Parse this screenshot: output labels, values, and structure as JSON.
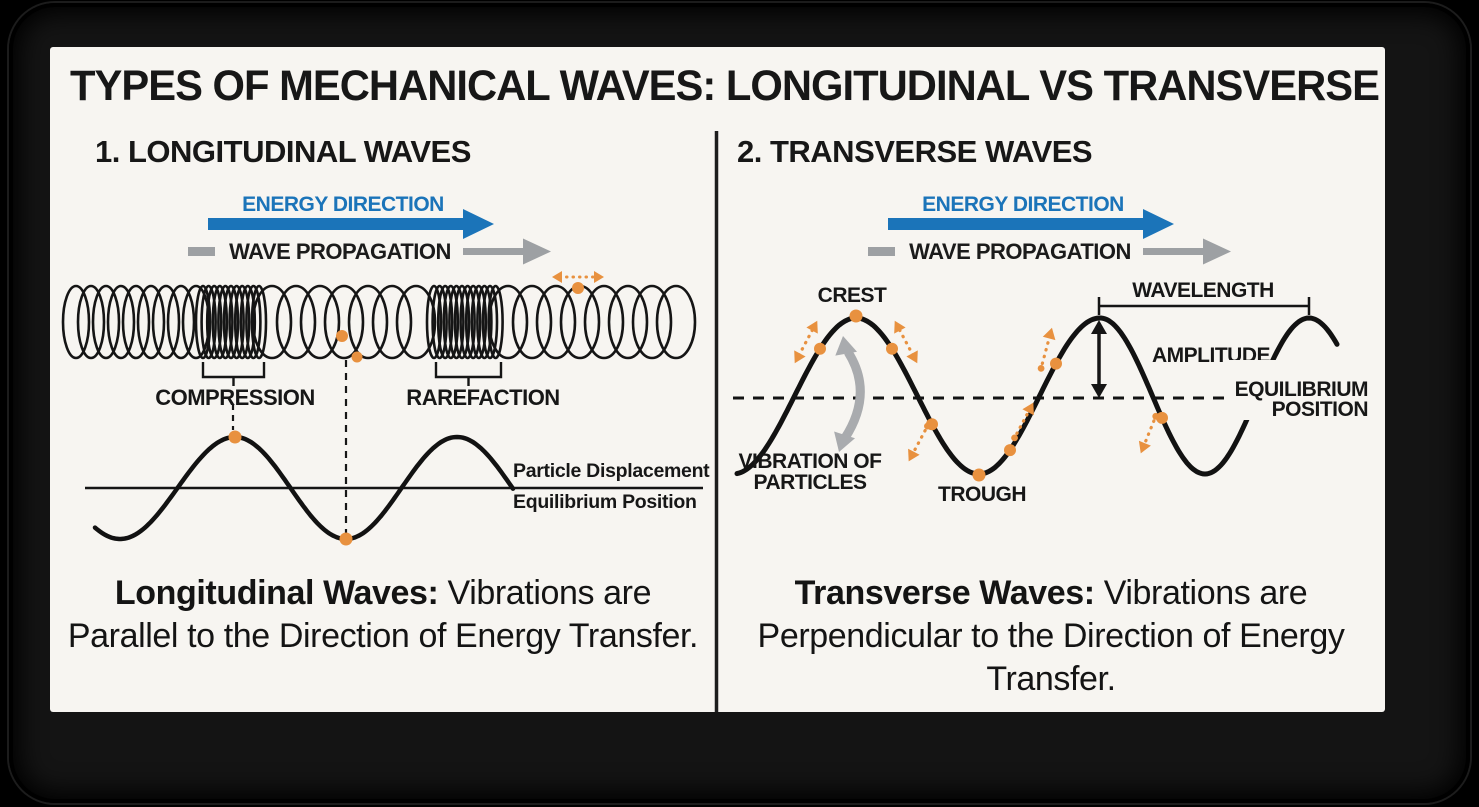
{
  "colors": {
    "blue": "#1B74B9",
    "orange": "#E8913F",
    "gray": "#9DA0A3",
    "gray_light": "#A9ABAE",
    "ink": "#171717",
    "card_bg": "#F7F5F1"
  },
  "title": "TYPES OF MECHANICAL WAVES: LONGITUDINAL VS TRANSVERSE",
  "left": {
    "heading": "1. LONGITUDINAL WAVES",
    "energy_label": "ENERGY DIRECTION",
    "propagation_label": "WAVE PROPAGATION",
    "compression": "COMPRESSION",
    "rarefaction": "RAREFACTION",
    "displacement": "Particle Displacement",
    "equilibrium": "Equilibrium Position",
    "caption_bold": "Longitudinal Waves:",
    "caption_rest": " Vibrations are Parallel to the Direction of Energy Transfer."
  },
  "right": {
    "heading": "2. TRANSVERSE WAVES",
    "energy_label": "ENERGY DIRECTION",
    "propagation_label": "WAVE PROPAGATION",
    "crest": "CREST",
    "trough": "TROUGH",
    "wavelength": "WAVELENGTH",
    "amplitude": "AMPLITUDE",
    "equilibrium_line1": "EQUILIBRIUM",
    "equilibrium_line2": "POSITION",
    "vibration_line1": "VIBRATION OF",
    "vibration_line2": "PARTICLES",
    "caption_bold": "Transverse Waves:",
    "caption_rest": " Vibrations are Perpendicular to the Direction of Energy Transfer."
  }
}
